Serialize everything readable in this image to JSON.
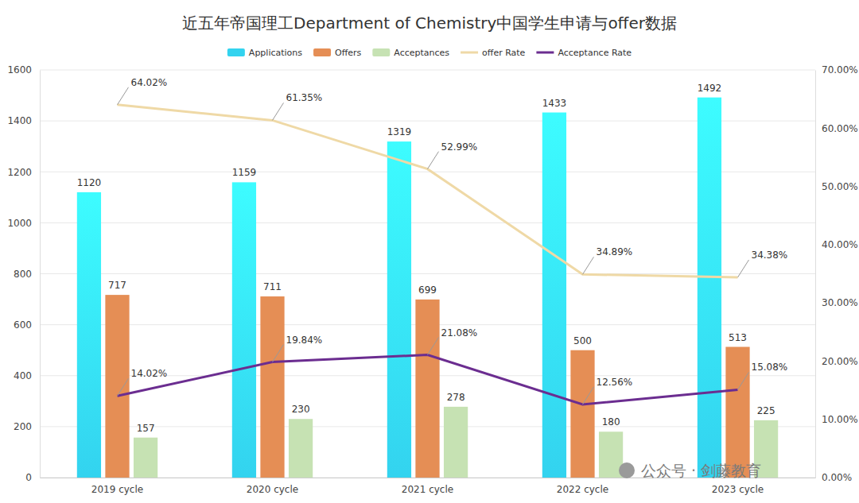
{
  "chart_data": {
    "type": "bar",
    "title": "近五年帝国理工Department of Chemistry中国学生申请与offer数据",
    "categories": [
      "2019 cycle",
      "2020 cycle",
      "2021 cycle",
      "2022 cycle",
      "2023 cycle"
    ],
    "series": [
      {
        "name": "Applications",
        "color": "#33d3ef",
        "type": "bar",
        "values": [
          1120,
          1159,
          1319,
          1433,
          1492
        ]
      },
      {
        "name": "Offers",
        "color": "#e58e55",
        "type": "bar",
        "values": [
          717,
          711,
          699,
          500,
          513
        ]
      },
      {
        "name": "Acceptances",
        "color": "#c6e2b3",
        "type": "bar",
        "values": [
          157,
          230,
          278,
          180,
          225
        ]
      },
      {
        "name": "offer Rate",
        "color": "#efd9a6",
        "type": "line",
        "axis": "y2",
        "values": [
          64.02,
          61.35,
          52.99,
          34.89,
          34.38
        ],
        "value_labels": [
          "64.02%",
          "61.35%",
          "52.99%",
          "34.89%",
          "34.38%"
        ]
      },
      {
        "name": "Acceptance Rate",
        "color": "#6b2d90",
        "type": "line",
        "axis": "y2",
        "values": [
          14.02,
          19.84,
          21.08,
          12.56,
          15.08
        ],
        "value_labels": [
          "14.02%",
          "19.84%",
          "21.08%",
          "12.56%",
          "15.08%"
        ]
      }
    ],
    "ylim": [
      0,
      1600
    ],
    "yticks": [
      0,
      200,
      400,
      600,
      800,
      1000,
      1200,
      1400,
      1600
    ],
    "y2lim": [
      0,
      70
    ],
    "y2ticks": [
      {
        "value": 0,
        "label": "0.00%"
      },
      {
        "value": 10,
        "label": "10.00%"
      },
      {
        "value": 20,
        "label": "20.00%"
      },
      {
        "value": 30,
        "label": "30.00%"
      },
      {
        "value": 40,
        "label": "40.00%"
      },
      {
        "value": 50,
        "label": "50.00%"
      },
      {
        "value": 60,
        "label": "60.00%"
      },
      {
        "value": 70,
        "label": "70.00%"
      }
    ],
    "grid": true,
    "legend": "top",
    "data_labels": true,
    "annotations": [
      "公众号 · 剑藤教育"
    ]
  }
}
